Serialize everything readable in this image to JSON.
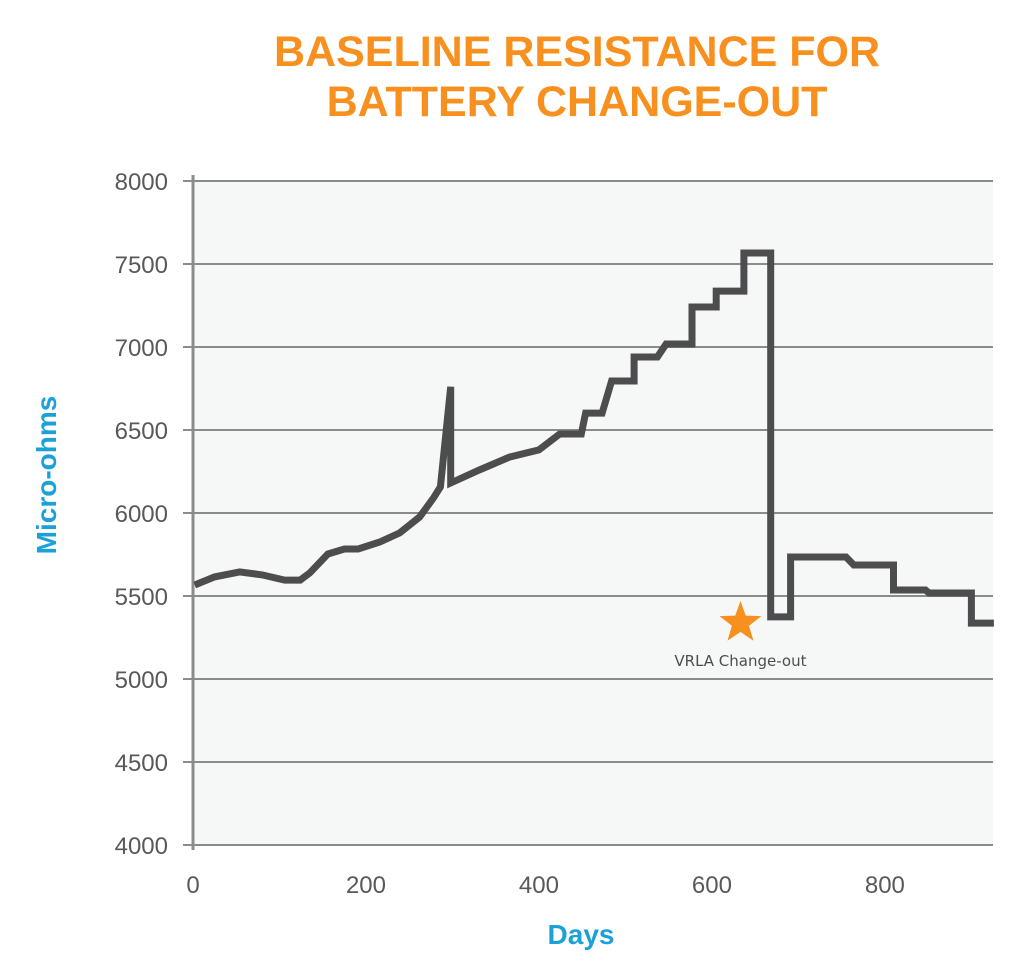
{
  "chart_data": {
    "type": "line",
    "title_lines": [
      "BASELINE RESISTANCE FOR",
      "BATTERY CHANGE-OUT"
    ],
    "xlabel": "Days",
    "ylabel": "Micro-ohms",
    "xlim": [
      0,
      925
    ],
    "ylim": [
      4000,
      8000
    ],
    "x_ticks": [
      0,
      200,
      400,
      600,
      800
    ],
    "y_ticks": [
      4000,
      4500,
      5000,
      5500,
      6000,
      6500,
      7000,
      7500,
      8000
    ],
    "grid": "horizontal",
    "series": [
      {
        "points": [
          [
            2,
            5566
          ],
          [
            25,
            5615
          ],
          [
            54,
            5645
          ],
          [
            80,
            5627
          ],
          [
            106,
            5596
          ],
          [
            124,
            5596
          ],
          [
            135,
            5639
          ],
          [
            156,
            5753
          ],
          [
            175,
            5783
          ],
          [
            191,
            5783
          ],
          [
            216,
            5825
          ],
          [
            239,
            5880
          ],
          [
            262,
            5976
          ],
          [
            278,
            6090
          ],
          [
            286,
            6157
          ],
          [
            298,
            6760
          ],
          [
            298,
            6181
          ],
          [
            331,
            6259
          ],
          [
            366,
            6337
          ],
          [
            400,
            6380
          ],
          [
            424,
            6476
          ],
          [
            449,
            6476
          ],
          [
            454,
            6602
          ],
          [
            473,
            6602
          ],
          [
            484,
            6795
          ],
          [
            510,
            6795
          ],
          [
            510,
            6940
          ],
          [
            537,
            6940
          ],
          [
            547,
            7018
          ],
          [
            577,
            7018
          ],
          [
            577,
            7241
          ],
          [
            605,
            7241
          ],
          [
            605,
            7337
          ],
          [
            637,
            7337
          ],
          [
            637,
            7566
          ],
          [
            668,
            7566
          ],
          [
            668,
            5374
          ],
          [
            691,
            5374
          ],
          [
            691,
            5735
          ],
          [
            755,
            5735
          ],
          [
            764,
            5687
          ],
          [
            810,
            5687
          ],
          [
            810,
            5536
          ],
          [
            847,
            5536
          ],
          [
            851,
            5518
          ],
          [
            900,
            5518
          ],
          [
            900,
            5337
          ],
          [
            926,
            5337
          ]
        ]
      }
    ],
    "annotations": [
      {
        "label": "VRLA Change-out",
        "x": 633,
        "y": 5350,
        "marker": "star"
      }
    ],
    "colors": {
      "title": "#F7901E",
      "axis_label": "#1BA1D8",
      "line": "#4D4D4F",
      "marker": "#F7901E",
      "plot_bg": "#F6F7F7",
      "grid": "#8A8B8C"
    }
  }
}
